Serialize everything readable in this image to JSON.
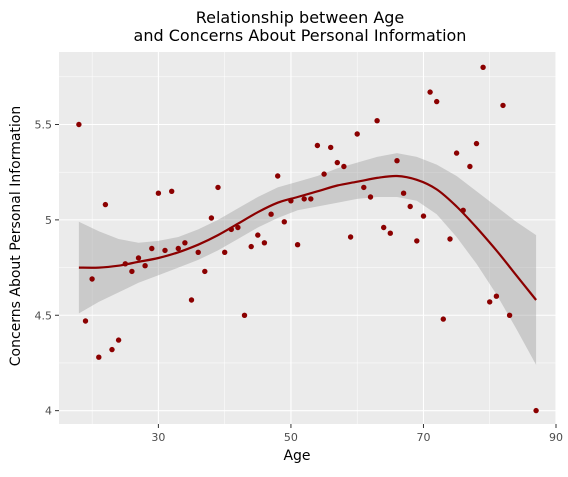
{
  "chart_data": {
    "type": "scatter",
    "title_line1": "Relationship between Age",
    "title_line2": "and Concerns About Personal Information",
    "xlabel": "Age",
    "ylabel": "Concerns About Personal Information",
    "xlim": [
      15,
      90
    ],
    "ylim": [
      3.93,
      5.88
    ],
    "x_ticks": [
      30,
      50,
      70,
      90
    ],
    "x_tick_labels": [
      "30",
      "50",
      "70",
      "90"
    ],
    "y_ticks": [
      4,
      4.5,
      5,
      5.5
    ],
    "y_tick_labels": [
      "4",
      "4.5",
      "5",
      "5.5"
    ],
    "grid": true,
    "point_color": "#8b0000",
    "line_color": "#8b0000",
    "band_color": "#999999",
    "panel_color": "#ebebeb",
    "points": [
      {
        "x": 18,
        "y": 5.5
      },
      {
        "x": 19,
        "y": 4.47
      },
      {
        "x": 20,
        "y": 4.69
      },
      {
        "x": 21,
        "y": 4.28
      },
      {
        "x": 22,
        "y": 5.08
      },
      {
        "x": 23,
        "y": 4.32
      },
      {
        "x": 24,
        "y": 4.37
      },
      {
        "x": 25,
        "y": 4.77
      },
      {
        "x": 26,
        "y": 4.73
      },
      {
        "x": 27,
        "y": 4.8
      },
      {
        "x": 28,
        "y": 4.76
      },
      {
        "x": 29,
        "y": 4.85
      },
      {
        "x": 30,
        "y": 5.14
      },
      {
        "x": 31,
        "y": 4.84
      },
      {
        "x": 32,
        "y": 5.15
      },
      {
        "x": 33,
        "y": 4.85
      },
      {
        "x": 34,
        "y": 4.88
      },
      {
        "x": 35,
        "y": 4.58
      },
      {
        "x": 36,
        "y": 4.83
      },
      {
        "x": 37,
        "y": 4.73
      },
      {
        "x": 38,
        "y": 5.01
      },
      {
        "x": 39,
        "y": 5.17
      },
      {
        "x": 40,
        "y": 4.83
      },
      {
        "x": 41,
        "y": 4.95
      },
      {
        "x": 42,
        "y": 4.96
      },
      {
        "x": 43,
        "y": 4.5
      },
      {
        "x": 44,
        "y": 4.86
      },
      {
        "x": 45,
        "y": 4.92
      },
      {
        "x": 46,
        "y": 4.88
      },
      {
        "x": 47,
        "y": 5.03
      },
      {
        "x": 48,
        "y": 5.23
      },
      {
        "x": 49,
        "y": 4.99
      },
      {
        "x": 50,
        "y": 5.1
      },
      {
        "x": 51,
        "y": 4.87
      },
      {
        "x": 52,
        "y": 5.11
      },
      {
        "x": 53,
        "y": 5.11
      },
      {
        "x": 54,
        "y": 5.39
      },
      {
        "x": 55,
        "y": 5.24
      },
      {
        "x": 56,
        "y": 5.38
      },
      {
        "x": 57,
        "y": 5.3
      },
      {
        "x": 58,
        "y": 5.28
      },
      {
        "x": 59,
        "y": 4.91
      },
      {
        "x": 60,
        "y": 5.45
      },
      {
        "x": 61,
        "y": 5.17
      },
      {
        "x": 62,
        "y": 5.12
      },
      {
        "x": 63,
        "y": 5.52
      },
      {
        "x": 64,
        "y": 4.96
      },
      {
        "x": 65,
        "y": 4.93
      },
      {
        "x": 66,
        "y": 5.31
      },
      {
        "x": 67,
        "y": 5.14
      },
      {
        "x": 68,
        "y": 5.07
      },
      {
        "x": 69,
        "y": 4.89
      },
      {
        "x": 70,
        "y": 5.02
      },
      {
        "x": 71,
        "y": 5.67
      },
      {
        "x": 72,
        "y": 5.62
      },
      {
        "x": 73,
        "y": 4.48
      },
      {
        "x": 74,
        "y": 4.9
      },
      {
        "x": 75,
        "y": 5.35
      },
      {
        "x": 76,
        "y": 5.05
      },
      {
        "x": 77,
        "y": 5.28
      },
      {
        "x": 78,
        "y": 5.4
      },
      {
        "x": 79,
        "y": 5.8
      },
      {
        "x": 80,
        "y": 4.57
      },
      {
        "x": 81,
        "y": 4.6
      },
      {
        "x": 82,
        "y": 5.6
      },
      {
        "x": 83,
        "y": 4.5
      },
      {
        "x": 87,
        "y": 4.0
      }
    ],
    "smooth_fit": {
      "x": [
        18,
        21,
        24,
        27,
        30,
        33,
        36,
        39,
        42,
        45,
        48,
        51,
        54,
        57,
        60,
        63,
        66,
        69,
        72,
        75,
        78,
        81,
        84,
        87
      ],
      "y": [
        4.75,
        4.75,
        4.76,
        4.78,
        4.8,
        4.83,
        4.87,
        4.92,
        4.98,
        5.04,
        5.09,
        5.12,
        5.15,
        5.18,
        5.2,
        5.22,
        5.23,
        5.21,
        5.16,
        5.07,
        4.96,
        4.84,
        4.71,
        4.58
      ],
      "lower": [
        4.51,
        4.57,
        4.62,
        4.67,
        4.71,
        4.75,
        4.79,
        4.84,
        4.9,
        4.96,
        5.01,
        5.05,
        5.07,
        5.09,
        5.11,
        5.12,
        5.12,
        5.1,
        5.03,
        4.91,
        4.77,
        4.61,
        4.43,
        4.24
      ],
      "upper": [
        4.99,
        4.94,
        4.9,
        4.88,
        4.89,
        4.91,
        4.95,
        5.0,
        5.06,
        5.12,
        5.17,
        5.2,
        5.23,
        5.27,
        5.3,
        5.33,
        5.35,
        5.33,
        5.29,
        5.23,
        5.15,
        5.07,
        4.99,
        4.92
      ]
    }
  }
}
